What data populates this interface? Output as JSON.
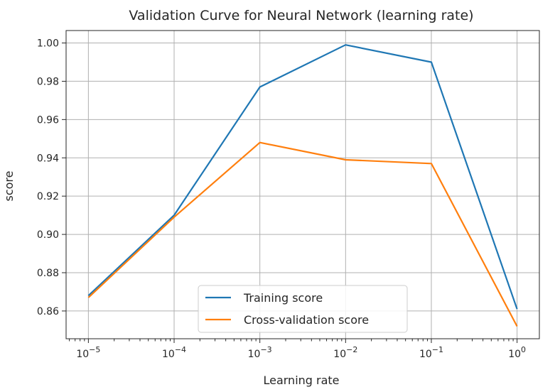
{
  "chart_data": {
    "type": "line",
    "title": "Validation Curve for Neural Network (learning rate)",
    "xlabel": "Learning rate",
    "ylabel": "score",
    "x_scale": "log",
    "x": [
      1e-05,
      0.0001,
      0.001,
      0.01,
      0.1,
      1
    ],
    "xticks": [
      {
        "base": "10",
        "exp": "−5"
      },
      {
        "base": "10",
        "exp": "−4"
      },
      {
        "base": "10",
        "exp": "−3"
      },
      {
        "base": "10",
        "exp": "−2"
      },
      {
        "base": "10",
        "exp": "−1"
      },
      {
        "base": "10",
        "exp": "0"
      }
    ],
    "yticks": [
      "0.86",
      "0.88",
      "0.90",
      "0.92",
      "0.94",
      "0.96",
      "0.98",
      "1.00"
    ],
    "ylim": [
      0.8455,
      1.0065
    ],
    "grid": true,
    "legend_position": "lower-center",
    "series": [
      {
        "name": "Training score",
        "color": "#1f77b4",
        "values": [
          0.868,
          0.91,
          0.977,
          0.999,
          0.99,
          0.861
        ]
      },
      {
        "name": "Cross-validation score",
        "color": "#ff7f0e",
        "values": [
          0.867,
          0.909,
          0.948,
          0.939,
          0.937,
          0.852
        ]
      }
    ]
  }
}
